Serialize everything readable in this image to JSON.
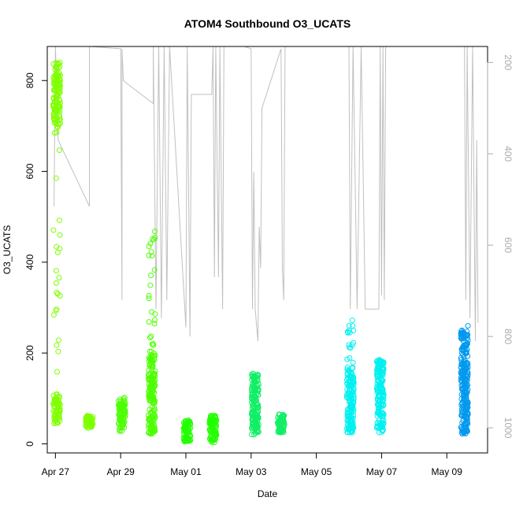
{
  "chart_data": {
    "type": "scatter",
    "title": "ATOM4 Southbound O3_UCATS",
    "xlabel": "Date",
    "ylabel": "O3_UCATS",
    "x_ticks": [
      "Apr 27",
      "Apr 29",
      "May 01",
      "May 03",
      "May 05",
      "May 07",
      "May 09"
    ],
    "y_ticks": [
      "0",
      "200",
      "400",
      "600",
      "800"
    ],
    "y2_ticks": [
      "200",
      "400",
      "600",
      "800",
      "1000"
    ],
    "xlim": [
      "2018-04-26T18:00",
      "2018-05-10T06:00"
    ],
    "ylim": [
      -20,
      875
    ],
    "y2lim": [
      1055,
      165
    ],
    "y2_reversed": true,
    "grid": false,
    "series": [
      {
        "color": "#7fff00",
        "clusters": [
          {
            "x": "2018-04-27T01:00",
            "ymin": 45,
            "ymax": 840,
            "dense": [
              [
                45,
                110
              ],
              [
                700,
                840
              ]
            ]
          },
          {
            "x": "2018-04-28T01:00",
            "ymin": 35,
            "ymax": 62,
            "dense": [
              [
                35,
                62
              ]
            ]
          }
        ]
      },
      {
        "color": "#4cff00",
        "clusters": [
          {
            "x": "2018-04-29T01:00",
            "ymin": 28,
            "ymax": 102,
            "dense": [
              [
                35,
                90
              ]
            ]
          },
          {
            "x": "2018-04-29T23:00",
            "ymin": 22,
            "ymax": 468,
            "dense": [
              [
                22,
                200
              ]
            ]
          }
        ]
      },
      {
        "color": "#22ff00",
        "clusters": [
          {
            "x": "2018-05-01T01:00",
            "ymin": 5,
            "ymax": 52,
            "dense": [
              [
                5,
                52
              ]
            ]
          },
          {
            "x": "2018-05-01T20:00",
            "ymin": 3,
            "ymax": 62,
            "dense": [
              [
                3,
                62
              ]
            ]
          }
        ]
      },
      {
        "color": "#11ee66",
        "clusters": [
          {
            "x": "2018-05-03T03:00",
            "ymin": 20,
            "ymax": 155,
            "dense": [
              [
                20,
                155
              ]
            ]
          },
          {
            "x": "2018-05-03T22:00",
            "ymin": 25,
            "ymax": 65,
            "dense": [
              [
                25,
                65
              ]
            ]
          }
        ]
      },
      {
        "color": "#00f0f0",
        "clusters": [
          {
            "x": "2018-05-06T01:00",
            "ymin": 25,
            "ymax": 272,
            "dense": [
              [
                25,
                170
              ]
            ]
          },
          {
            "x": "2018-05-06T23:00",
            "ymin": 25,
            "ymax": 185,
            "dense": [
              [
                25,
                185
              ]
            ]
          }
        ]
      },
      {
        "color": "#0099ee",
        "clusters": [
          {
            "x": "2018-05-09T13:00",
            "ymin": 22,
            "ymax": 260,
            "dense": [
              [
                22,
                250
              ]
            ]
          }
        ]
      }
    ],
    "pressure_trace": {
      "color": "#c0c0c0",
      "axis": "right",
      "points": [
        [
          "2018-04-26T23:00",
          515
        ],
        [
          "2018-04-27T00:00",
          165
        ],
        [
          "2018-04-27T02:00",
          370
        ],
        [
          "2018-04-28T01:00",
          515
        ],
        [
          "2018-04-28T01:00",
          165
        ],
        [
          "2018-04-29T00:00",
          170
        ],
        [
          "2018-04-29T01:00",
          720
        ],
        [
          "2018-04-29T01:00",
          170
        ],
        [
          "2018-04-29T02:00",
          240
        ],
        [
          "2018-04-30T00:00",
          290
        ],
        [
          "2018-04-30T00:00",
          165
        ],
        [
          "2018-04-30T02:00",
          740
        ],
        [
          "2018-04-30T04:00",
          165
        ],
        [
          "2018-04-30T06:00",
          760
        ],
        [
          "2018-04-30T08:00",
          165
        ],
        [
          "2018-04-30T10:00",
          720
        ],
        [
          "2018-04-30T12:00",
          165
        ],
        [
          "2018-05-01T00:00",
          780
        ],
        [
          "2018-05-01T01:00",
          165
        ],
        [
          "2018-05-01T03:00",
          800
        ],
        [
          "2018-05-01T04:00",
          270
        ],
        [
          "2018-05-01T19:00",
          270
        ],
        [
          "2018-05-01T20:00",
          165
        ],
        [
          "2018-05-01T21:00",
          670
        ],
        [
          "2018-05-01T22:00",
          165
        ],
        [
          "2018-05-02T00:00",
          670
        ],
        [
          "2018-05-02T01:00",
          165
        ],
        [
          "2018-05-02T03:00",
          740
        ],
        [
          "2018-05-02T04:00",
          165
        ],
        [
          "2018-05-02T19:00",
          165
        ],
        [
          "2018-05-03T00:00",
          170
        ],
        [
          "2018-05-03T01:00",
          740
        ],
        [
          "2018-05-03T02:00",
          440
        ],
        [
          "2018-05-03T03:00",
          740
        ],
        [
          "2018-05-03T05:00",
          810
        ],
        [
          "2018-05-03T06:00",
          560
        ],
        [
          "2018-05-03T07:00",
          650
        ],
        [
          "2018-05-03T08:00",
          300
        ],
        [
          "2018-05-03T22:00",
          170
        ],
        [
          "2018-05-03T23:00",
          650
        ],
        [
          "2018-05-04T00:00",
          720
        ],
        [
          "2018-05-04T01:00",
          165
        ],
        [
          "2018-05-05T00:00",
          165
        ],
        [
          "2018-05-06T00:00",
          165
        ],
        [
          "2018-05-06T01:00",
          740
        ],
        [
          "2018-05-06T03:00",
          165
        ],
        [
          "2018-05-06T06:00",
          740
        ],
        [
          "2018-05-06T09:00",
          165
        ],
        [
          "2018-05-06T12:00",
          740
        ],
        [
          "2018-05-06T22:00",
          740
        ],
        [
          "2018-05-06T23:00",
          165
        ],
        [
          "2018-05-07T00:00",
          710
        ],
        [
          "2018-05-07T01:00",
          165
        ],
        [
          "2018-05-07T02:00",
          720
        ],
        [
          "2018-05-07T03:00",
          165
        ],
        [
          "2018-05-09T13:00",
          165
        ],
        [
          "2018-05-09T14:00",
          720
        ],
        [
          "2018-05-09T15:00",
          165
        ],
        [
          "2018-05-09T17:00",
          760
        ],
        [
          "2018-05-09T19:00",
          165
        ],
        [
          "2018-05-09T21:00",
          810
        ],
        [
          "2018-05-09T22:00",
          370
        ],
        [
          "2018-05-09T23:00",
          770
        ]
      ]
    }
  }
}
